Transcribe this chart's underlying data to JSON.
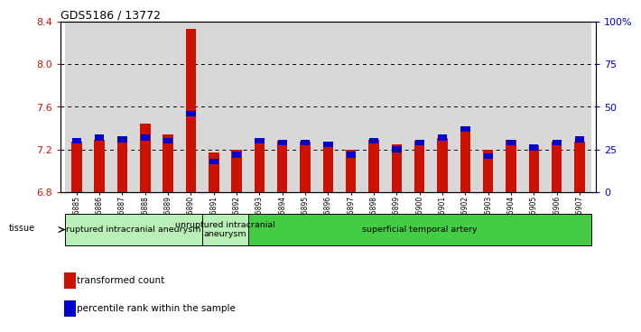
{
  "title": "GDS5186 / 13772",
  "samples": [
    "GSM1306885",
    "GSM1306886",
    "GSM1306887",
    "GSM1306888",
    "GSM1306889",
    "GSM1306890",
    "GSM1306891",
    "GSM1306892",
    "GSM1306893",
    "GSM1306894",
    "GSM1306895",
    "GSM1306896",
    "GSM1306897",
    "GSM1306898",
    "GSM1306899",
    "GSM1306900",
    "GSM1306901",
    "GSM1306902",
    "GSM1306903",
    "GSM1306904",
    "GSM1306905",
    "GSM1306906",
    "GSM1306907"
  ],
  "red_values": [
    7.27,
    7.29,
    7.3,
    7.44,
    7.34,
    8.33,
    7.17,
    7.2,
    7.29,
    7.28,
    7.27,
    7.27,
    7.2,
    7.29,
    7.25,
    7.28,
    7.31,
    7.39,
    7.2,
    7.29,
    7.24,
    7.27,
    7.27
  ],
  "blue_values_pct": [
    30,
    32,
    31,
    32,
    30,
    46,
    18,
    22,
    30,
    29,
    29,
    28,
    22,
    30,
    25,
    29,
    32,
    37,
    21,
    29,
    26,
    29,
    31
  ],
  "ylim_left": [
    6.8,
    8.4
  ],
  "ylim_right": [
    0,
    100
  ],
  "yticks_left": [
    6.8,
    7.2,
    7.6,
    8.0,
    8.4
  ],
  "yticks_right": [
    0,
    25,
    50,
    75,
    100
  ],
  "ytick_labels_right": [
    "0",
    "25",
    "50",
    "75",
    "100%"
  ],
  "ytick_dotted": [
    7.2,
    7.6,
    8.0
  ],
  "group_defs": [
    {
      "start": 0,
      "end": 5,
      "color": "#b8f0b8",
      "label": "ruptured intracranial aneurysm"
    },
    {
      "start": 6,
      "end": 7,
      "color": "#b8f0b8",
      "label": "unruptured intracranial\naneurysm"
    },
    {
      "start": 8,
      "end": 22,
      "color": "#44cc44",
      "label": "superficial temporal artery"
    }
  ],
  "bar_width": 0.45,
  "red_color": "#cc1100",
  "blue_color": "#0000cc",
  "col_bg_color": "#d8d8d8",
  "left_tick_color": "#cc1100",
  "right_tick_color": "#0000cc"
}
